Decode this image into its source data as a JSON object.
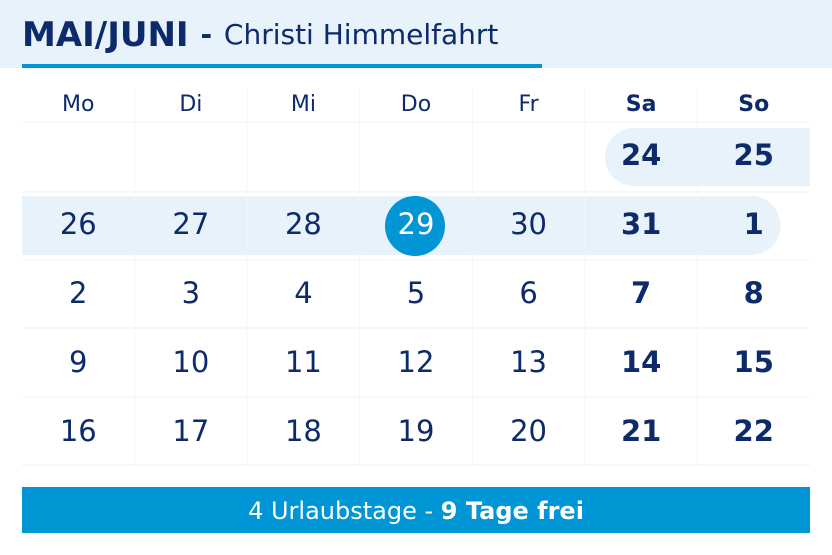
{
  "header": {
    "title": "MAI/JUNI",
    "separator": "-",
    "subtitle": "Christi Himmelfahrt"
  },
  "calendar": {
    "weekdays": [
      "Mo",
      "Di",
      "Mi",
      "Do",
      "Fr",
      "Sa",
      "So"
    ],
    "weeks": [
      [
        null,
        null,
        null,
        null,
        null,
        "24",
        "25"
      ],
      [
        "26",
        "27",
        "28",
        "29",
        "30",
        "31",
        "1"
      ],
      [
        "2",
        "3",
        "4",
        "5",
        "6",
        "7",
        "8"
      ],
      [
        "9",
        "10",
        "11",
        "12",
        "13",
        "14",
        "15"
      ],
      [
        "16",
        "17",
        "18",
        "19",
        "20",
        "21",
        "22"
      ]
    ]
  },
  "footer": {
    "vacation_days": "4 Urlaubstage",
    "separator": "-",
    "free_days": "9 Tage frei"
  }
}
